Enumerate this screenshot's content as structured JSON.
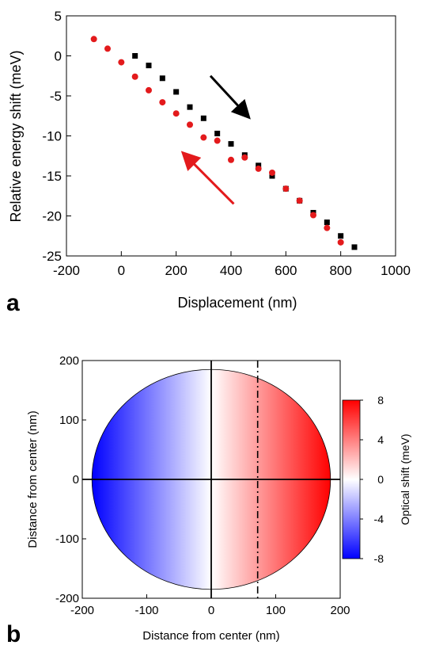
{
  "chart_data": [
    {
      "type": "scatter",
      "panel_label": "a",
      "xlabel": "Displacement (nm)",
      "ylabel": "Relative energy shift (meV)",
      "xlim": [
        -200,
        1000
      ],
      "ylim": [
        -25,
        5
      ],
      "xticks": [
        -200,
        0,
        200,
        400,
        600,
        800,
        1000
      ],
      "yticks": [
        5,
        0,
        -5,
        -10,
        -15,
        -20,
        -25
      ],
      "series": [
        {
          "marker": "square",
          "color": "#000000",
          "x": [
            50,
            100,
            150,
            200,
            250,
            300,
            350,
            400,
            450,
            500,
            550,
            600,
            650,
            700,
            750,
            800,
            850
          ],
          "y": [
            0.0,
            -1.2,
            -2.8,
            -4.5,
            -6.4,
            -7.8,
            -9.7,
            -11.0,
            -12.4,
            -13.7,
            -15.0,
            -16.6,
            -18.1,
            -19.6,
            -20.8,
            -22.5,
            -23.9
          ]
        },
        {
          "marker": "circle",
          "color": "#e31a1c",
          "x": [
            -100,
            -50,
            0,
            50,
            100,
            150,
            200,
            250,
            300,
            350,
            400,
            450,
            500,
            550,
            600,
            650,
            700,
            750,
            800
          ],
          "y": [
            2.1,
            0.9,
            -0.8,
            -2.6,
            -4.3,
            -5.8,
            -7.2,
            -8.6,
            -10.2,
            -10.6,
            -13.0,
            -12.7,
            -14.1,
            -14.6,
            -16.6,
            -18.1,
            -19.9,
            -21.5,
            -23.3
          ]
        }
      ],
      "annotations": [
        {
          "type": "arrow",
          "color": "#000000",
          "from": [
            325,
            -2.5
          ],
          "to": [
            460,
            -7.5
          ]
        },
        {
          "type": "arrow",
          "color": "#e31a1c",
          "from": [
            410,
            -18.5
          ],
          "to": [
            230,
            -12.3
          ]
        }
      ]
    },
    {
      "type": "heatmap",
      "panel_label": "b",
      "xlabel": "Distance from center (nm)",
      "ylabel": "Distance from center (nm)",
      "xlim": [
        -200,
        200
      ],
      "ylim": [
        -200,
        200
      ],
      "xticks": [
        -200,
        -100,
        0,
        100,
        200
      ],
      "yticks": [
        200,
        100,
        0,
        -100,
        -200
      ],
      "disk_radius_x": 185,
      "disk_radius_y": 185,
      "dashdot_line_x": 72,
      "colorbar": {
        "label": "Optical shift (meV)",
        "min": -8,
        "max": 8,
        "ticks": [
          8,
          4,
          0,
          -4,
          -8
        ],
        "colors": [
          "#0000ff",
          "#ffffff",
          "#ff0000"
        ]
      }
    }
  ]
}
